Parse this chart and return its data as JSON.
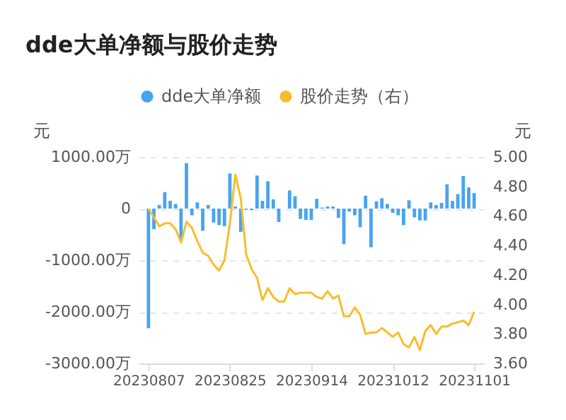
{
  "chart_data": {
    "type": "bar",
    "title": "dde大单净额与股价走势",
    "ylabel": "元",
    "y2label": "元",
    "categories": [
      "20230807",
      null,
      null,
      null,
      null,
      null,
      null,
      null,
      null,
      null,
      null,
      null,
      null,
      null,
      null,
      "20230825",
      null,
      null,
      null,
      null,
      null,
      null,
      null,
      null,
      null,
      null,
      null,
      null,
      null,
      null,
      "20230914",
      null,
      null,
      null,
      null,
      null,
      null,
      null,
      null,
      null,
      null,
      null,
      null,
      null,
      null,
      "20231012",
      null,
      null,
      null,
      null,
      null,
      null,
      null,
      null,
      null,
      null,
      null,
      null,
      null,
      null,
      "20231101"
    ],
    "series": [
      {
        "name": "dde大单净额",
        "color": "#48a4f0",
        "values": [
          -2320,
          -400,
          70,
          320,
          150,
          90,
          -600,
          880,
          -130,
          120,
          -430,
          70,
          -270,
          -320,
          -340,
          680,
          40,
          -450,
          -20,
          -30,
          640,
          150,
          530,
          180,
          -260,
          null,
          350,
          240,
          -200,
          -220,
          -220,
          190,
          20,
          40,
          40,
          -180,
          -690,
          -60,
          -130,
          -360,
          250,
          -750,
          140,
          200,
          90,
          -80,
          -130,
          -320,
          160,
          -170,
          -230,
          -230,
          120,
          70,
          110,
          470,
          150,
          280,
          630,
          410,
          300
        ]
      },
      {
        "name": "股价走势（右）",
        "type": "line",
        "axis": "y2",
        "color": "#f9bd2c",
        "values": [
          4.65,
          4.59,
          4.53,
          4.55,
          4.55,
          4.51,
          4.42,
          4.56,
          4.52,
          4.43,
          4.35,
          4.33,
          4.27,
          4.23,
          4.3,
          4.55,
          4.88,
          4.72,
          4.34,
          4.24,
          4.18,
          4.03,
          4.11,
          4.05,
          4.02,
          4.02,
          4.11,
          4.07,
          4.08,
          4.08,
          4.08,
          4.05,
          4.04,
          4.09,
          4.04,
          4.06,
          3.92,
          3.92,
          3.98,
          3.93,
          3.8,
          3.81,
          3.81,
          3.84,
          3.81,
          3.78,
          3.81,
          3.73,
          3.71,
          3.78,
          3.69,
          3.82,
          3.86,
          3.8,
          3.85,
          3.85,
          3.87,
          3.88,
          3.89,
          3.86,
          3.95
        ]
      }
    ],
    "ylim": [
      -3000,
      1000
    ],
    "yticks": [
      {
        "value": -3000,
        "label": "-3000.00万"
      },
      {
        "value": -2000,
        "label": "-2000.00万"
      },
      {
        "value": -1000,
        "label": "-1000.00万"
      },
      0,
      {
        "value": 1000,
        "label": "1000.00万"
      }
    ],
    "y2lim": [
      3.6,
      5.0
    ],
    "y2ticks": [
      {
        "value": 3.6,
        "label": "3.60"
      },
      {
        "value": 3.8,
        "label": "3.80"
      },
      {
        "value": 4.0,
        "label": "4.00"
      },
      {
        "value": 4.2,
        "label": "4.20"
      },
      {
        "value": 4.4,
        "label": "4.40"
      },
      {
        "value": 4.6,
        "label": "4.60"
      },
      {
        "value": 4.8,
        "label": "4.80"
      },
      {
        "value": 5.0,
        "label": "5.00"
      }
    ],
    "grid": "y",
    "legend": "top"
  }
}
